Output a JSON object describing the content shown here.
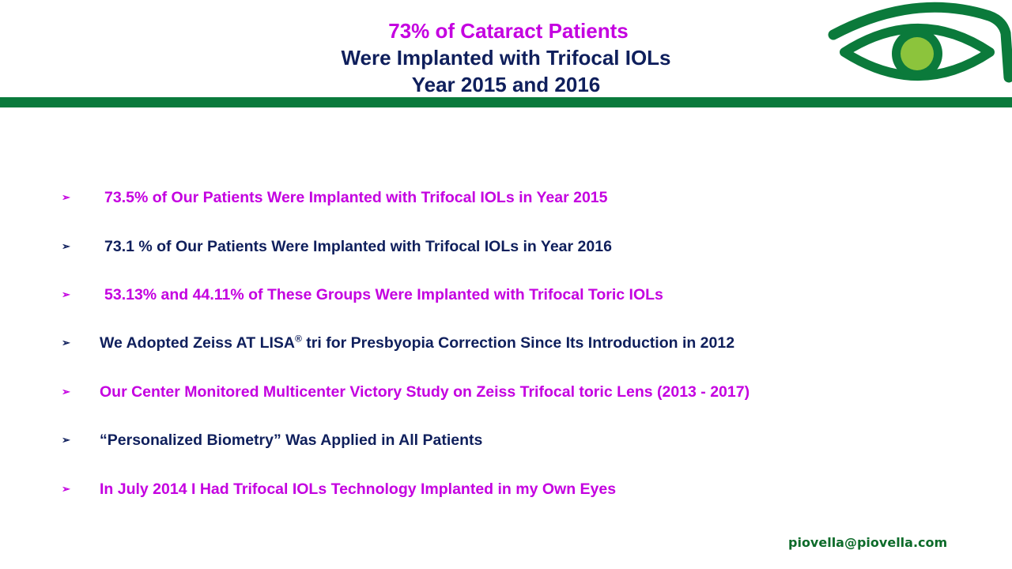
{
  "slide": {
    "title_line1": "73% of  Cataract Patients",
    "title_line2": "Were Implanted with Trifocal IOLs",
    "title_line3": "Year 2015 and 2016",
    "logo_icon": "eye-logo-icon",
    "colors": {
      "magenta": "#c400e0",
      "navy": "#0f1f5c",
      "green_bar": "#0a7a3c",
      "logo_green": "#0b7a3b",
      "iris_green": "#8cc43c"
    },
    "bullets": [
      {
        "text": "73.5%   of Our  Patients  Were Implanted with Trifocal IOLs in Year 2015",
        "color": "magenta"
      },
      {
        "text": "73.1 %  of Our  Patients  Were Implanted with Trifocal IOLs in Year 2016",
        "color": "navy"
      },
      {
        "text": "53.13% and 44.11%  of These Groups Were Implanted  with Trifocal Toric IOLs",
        "color": "magenta"
      },
      {
        "text_before": "We Adopted Zeiss AT LISA",
        "superscript": "®",
        "text_after": " tri  for Presbyopia Correction Since Its Introduction in 2012",
        "color": "navy"
      },
      {
        "text": "Our Center Monitored Multicenter Victory Study on Zeiss Trifocal toric Lens (2013 -  2017)",
        "color": "magenta"
      },
      {
        "text": "“Personalized Biometry” Was Applied in All  Patients",
        "color": "navy"
      },
      {
        "text": "In July 2014 I Had Trifocal IOLs Technology Implanted in my Own Eyes",
        "color": "magenta"
      }
    ],
    "bullet_glyph": "➢",
    "footer_email": "piovella@piovella.com"
  }
}
